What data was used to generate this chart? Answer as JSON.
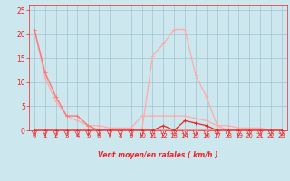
{
  "background_color": "#cce8ee",
  "grid_color": "#99bbcc",
  "line_color_dark": "#ee2222",
  "line_color_mid": "#ff7777",
  "line_color_light": "#ffaaaa",
  "xlabel": "Vent moyen/en rafales ( km/h )",
  "xlim": [
    -0.5,
    23.5
  ],
  "ylim": [
    0,
    26
  ],
  "yticks": [
    0,
    5,
    10,
    15,
    20,
    25
  ],
  "xticks": [
    0,
    1,
    2,
    3,
    4,
    5,
    6,
    7,
    8,
    9,
    10,
    11,
    12,
    13,
    14,
    15,
    16,
    17,
    18,
    19,
    20,
    21,
    22,
    23
  ],
  "series_decay_x": [
    0,
    1,
    2,
    3,
    4,
    5,
    6,
    7,
    8,
    9,
    10,
    11,
    12,
    13,
    14,
    15,
    16,
    17,
    18,
    19,
    20,
    21,
    22,
    23
  ],
  "series_decay_y": [
    21,
    12,
    7,
    3,
    3,
    1,
    0,
    0,
    0,
    0,
    0,
    0,
    0,
    0,
    0,
    0,
    0,
    0,
    0,
    0,
    0,
    0,
    0,
    0
  ],
  "series_light_decay_x": [
    0,
    1,
    2,
    3,
    4,
    5,
    6,
    7,
    8,
    9,
    10,
    11,
    12,
    13,
    14,
    15,
    16,
    17,
    18,
    19,
    20,
    21,
    22,
    23
  ],
  "series_light_decay_y": [
    21,
    11,
    6,
    3,
    2,
    1,
    1,
    0.5,
    0.5,
    0.5,
    3,
    3,
    3,
    3,
    3,
    2.5,
    2,
    1,
    1,
    0.5,
    0.5,
    0.5,
    0,
    0
  ],
  "series_peak_x": [
    0,
    1,
    2,
    3,
    4,
    5,
    6,
    7,
    8,
    9,
    10,
    11,
    12,
    13,
    14,
    15,
    16,
    17,
    18,
    19,
    20,
    21,
    22,
    23
  ],
  "series_peak_y": [
    0,
    0,
    0,
    0,
    0,
    0,
    0,
    0,
    0,
    0,
    0,
    15.5,
    18,
    21,
    21,
    11.5,
    7,
    1,
    0,
    0,
    0,
    0,
    0,
    0
  ],
  "series_small_x": [
    0,
    1,
    2,
    3,
    4,
    5,
    6,
    7,
    8,
    9,
    10,
    11,
    12,
    13,
    14,
    15,
    16,
    17,
    18,
    19,
    20,
    21,
    22,
    23
  ],
  "series_small_y": [
    0,
    0,
    0,
    0,
    0,
    0,
    0,
    0,
    0,
    0,
    0,
    0,
    1,
    0,
    2,
    1.5,
    1,
    0,
    0,
    0,
    0,
    0,
    0,
    0
  ]
}
